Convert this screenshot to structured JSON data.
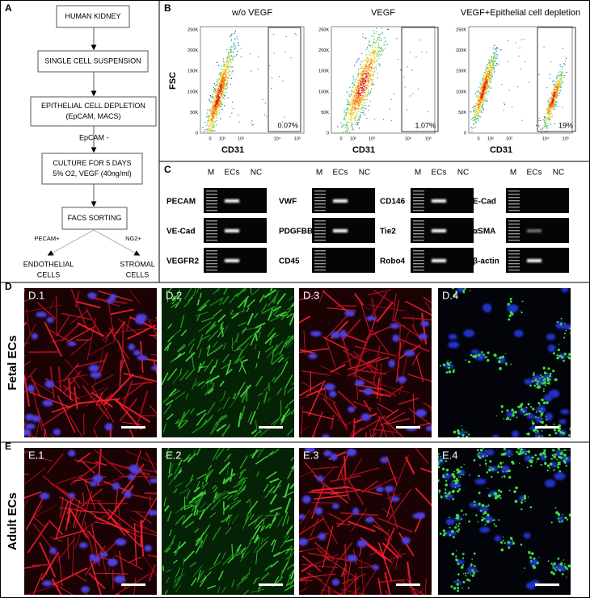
{
  "panel_a": {
    "label": "A",
    "steps": [
      [
        "HUMAN KIDNEY"
      ],
      [
        "SINGLE CELL SUSPENSION"
      ],
      [
        "EPITHELIAL CELL DEPLETION",
        "(EpCAM, MACS)"
      ],
      [
        "CULTURE FOR 5 DAYS",
        "5% O2, VEGF (40ng/ml)"
      ],
      [
        "FACS SORTING"
      ]
    ],
    "arrow_label": "EpCAM -",
    "branches": [
      {
        "label": "PECAM+",
        "outcome": [
          "ENDOTHELIAL",
          "CELLS"
        ]
      },
      {
        "label": "NG2+",
        "outcome": [
          "STROMAL",
          "CELLS"
        ]
      }
    ]
  },
  "panel_b": {
    "label": "B",
    "y_axis_label": "FSC",
    "y_ticks": [
      "250K",
      "200K",
      "150K",
      "100K",
      "50K",
      "0"
    ],
    "x_ticks": [
      "0",
      "10²",
      "10³",
      "10⁴",
      "10⁵"
    ],
    "plots": [
      {
        "title": "w/o VEGF",
        "x_axis_label": "CD31",
        "gate_percent": "0.07%"
      },
      {
        "title": "VEGF",
        "x_axis_label": "CD31",
        "gate_percent": "1.07%"
      },
      {
        "title": "VEGF+Epithelial cell depletion",
        "x_axis_label": "CD31",
        "gate_percent": "19%"
      }
    ]
  },
  "panel_c": {
    "label": "C",
    "lane_labels": [
      "M",
      "ECs",
      "NC"
    ],
    "gels": [
      {
        "markers": [
          "PECAM",
          "VE-Cad",
          "VEGFR2"
        ]
      },
      {
        "markers": [
          "VWF",
          "PDGFBB",
          "CD45"
        ]
      },
      {
        "markers": [
          "CD146",
          "Tie2",
          "Robo4"
        ]
      },
      {
        "markers": [
          "E-Cad",
          "αSMA",
          "β-actin"
        ]
      }
    ]
  },
  "panel_d": {
    "label": "D",
    "row_label": "Fetal ECs",
    "images": [
      "D.1",
      "D.2",
      "D.3",
      "D.4"
    ]
  },
  "panel_e": {
    "label": "E",
    "row_label": "Adult ECs",
    "images": [
      "E.1",
      "E.2",
      "E.3",
      "E.4"
    ]
  }
}
